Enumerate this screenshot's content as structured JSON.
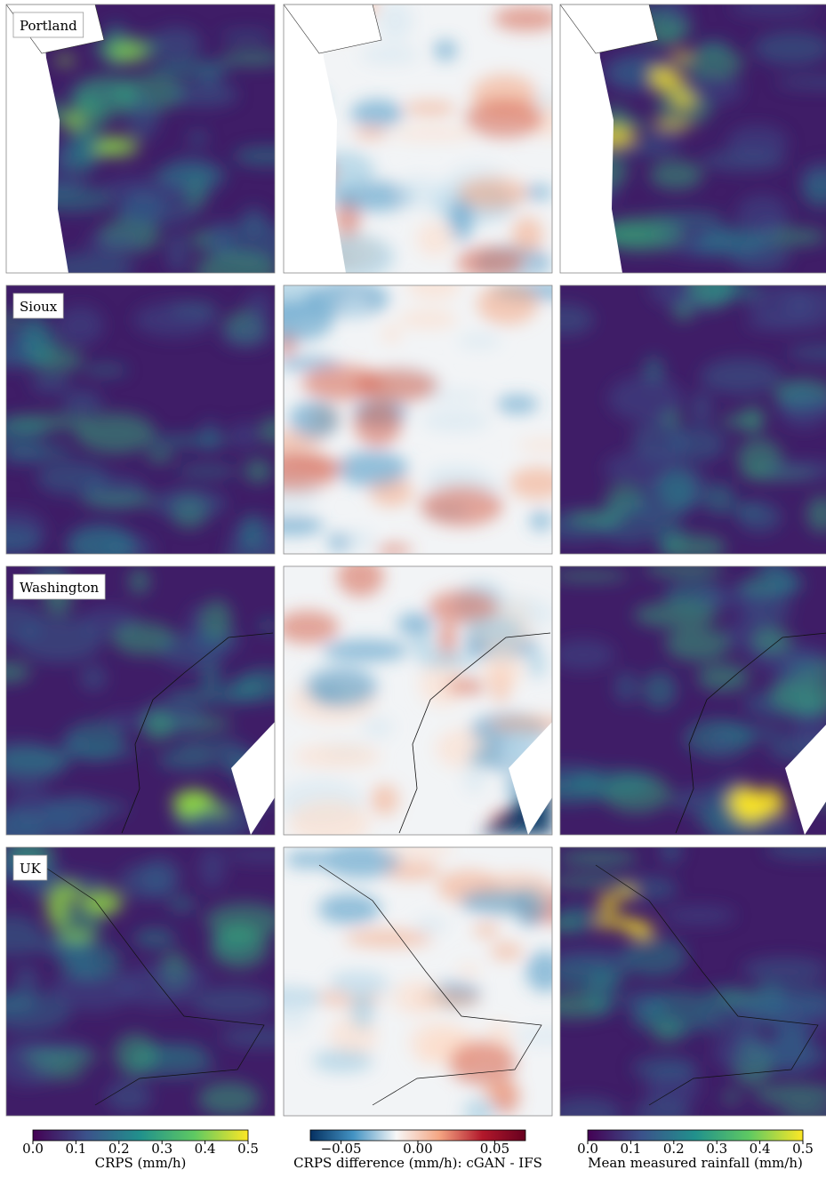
{
  "row_labels": [
    "Portland",
    "Sioux",
    "Washington",
    "UK"
  ],
  "colorbars": [
    {
      "label": "CRPS (mm/h)",
      "lim": [
        0,
        0.5
      ],
      "ticks": [
        {
          "value": 0,
          "label": "0.0"
        },
        0.1,
        0.2,
        0.3,
        0.4,
        0.5
      ],
      "colors": [
        "#440154",
        "#3b528b",
        "#21918c",
        "#5ec962",
        "#fde725"
      ]
    },
    {
      "label": "CRPS difference (mm/h): cGAN - IFS",
      "lim": [
        -0.07,
        0.07
      ],
      "ticks": [
        {
          "value": -0.05,
          "label": "−0.05"
        },
        {
          "value": 0,
          "label": "0.00"
        },
        0.05
      ],
      "colors": [
        "#053061",
        "#4393c3",
        "#f7f7f7",
        "#f4a582",
        "#b2182b",
        "#67001f"
      ]
    },
    {
      "label": "Mean measured rainfall (mm/h)",
      "lim": [
        0,
        0.5
      ],
      "ticks": [
        {
          "value": 0,
          "label": "0.0"
        },
        0.1,
        0.2,
        0.3,
        0.4,
        0.5
      ],
      "colors": [
        "#440154",
        "#3b528b",
        "#21918c",
        "#5ec962",
        "#fde725"
      ]
    }
  ]
}
